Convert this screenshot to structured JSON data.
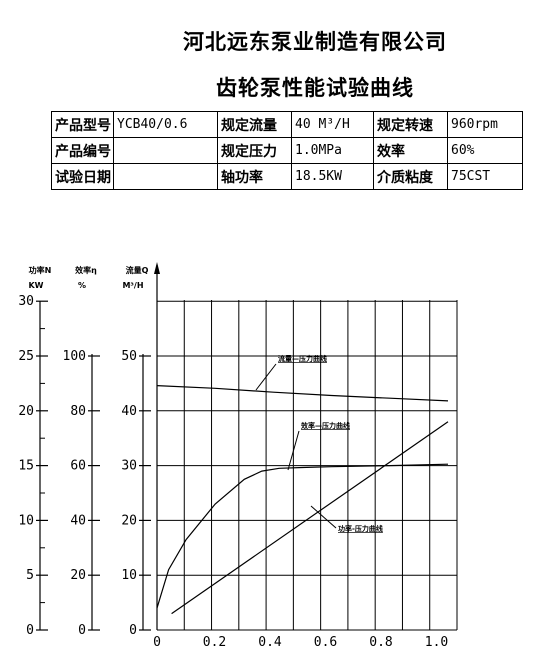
{
  "header": {
    "company": "河北远东泵业制造有限公司",
    "chart_title": "齿轮泵性能试验曲线"
  },
  "specs": [
    [
      {
        "label": "产品型号",
        "value": "YCB40/0.6"
      },
      {
        "label": "规定流量",
        "value": "40 M³/H"
      },
      {
        "label": "规定转速",
        "value": "960rpm"
      }
    ],
    [
      {
        "label": "产品编号",
        "value": ""
      },
      {
        "label": "规定压力",
        "value": "1.0MPa"
      },
      {
        "label": "效率",
        "value": "60%"
      }
    ],
    [
      {
        "label": "试验日期",
        "value": ""
      },
      {
        "label": "轴功率",
        "value": "18.5KW"
      },
      {
        "label": "介质粘度",
        "value": "75CST"
      }
    ]
  ],
  "chart_data": {
    "type": "line",
    "x_ticks": [
      "0",
      "0.2",
      "0.4",
      "0.6",
      "0.8",
      "1.0"
    ],
    "xlim": [
      0,
      1.0
    ],
    "grid": true,
    "axes": {
      "power": {
        "label_line1": "功率N",
        "label_line2": "KW",
        "ticks": [
          "0",
          "5",
          "10",
          "15",
          "20",
          "25",
          "30"
        ],
        "lim": [
          0,
          30
        ]
      },
      "efficiency": {
        "label_line1": "效率η",
        "label_line2": "%",
        "ticks": [
          "0",
          "20",
          "40",
          "60",
          "80",
          "100"
        ],
        "lim": [
          0,
          100
        ]
      },
      "flow": {
        "label_line1": "流量Q",
        "label_line2": "M³/H",
        "ticks": [
          "0",
          "10",
          "20",
          "30",
          "40",
          "50"
        ],
        "lim": [
          0,
          50
        ]
      }
    },
    "series": [
      {
        "name": "流量—压力曲线",
        "axis": "flow",
        "x": [
          0,
          0.2,
          0.4,
          0.6,
          0.8,
          1.0
        ],
        "y": [
          44.6,
          44.1,
          43.4,
          42.8,
          42.3,
          41.8
        ]
      },
      {
        "name": "效率—压力曲线",
        "axis": "efficiency",
        "x": [
          0.0,
          0.04,
          0.1,
          0.2,
          0.3,
          0.36,
          0.42,
          0.5,
          0.6,
          0.8,
          1.0
        ],
        "y": [
          8,
          22,
          33,
          46,
          55,
          58,
          59,
          59.3,
          59.6,
          60,
          60.5
        ]
      },
      {
        "name": "功率-压力曲线",
        "axis": "power",
        "x": [
          0.05,
          1.0
        ],
        "y": [
          1.5,
          19
        ]
      }
    ]
  }
}
